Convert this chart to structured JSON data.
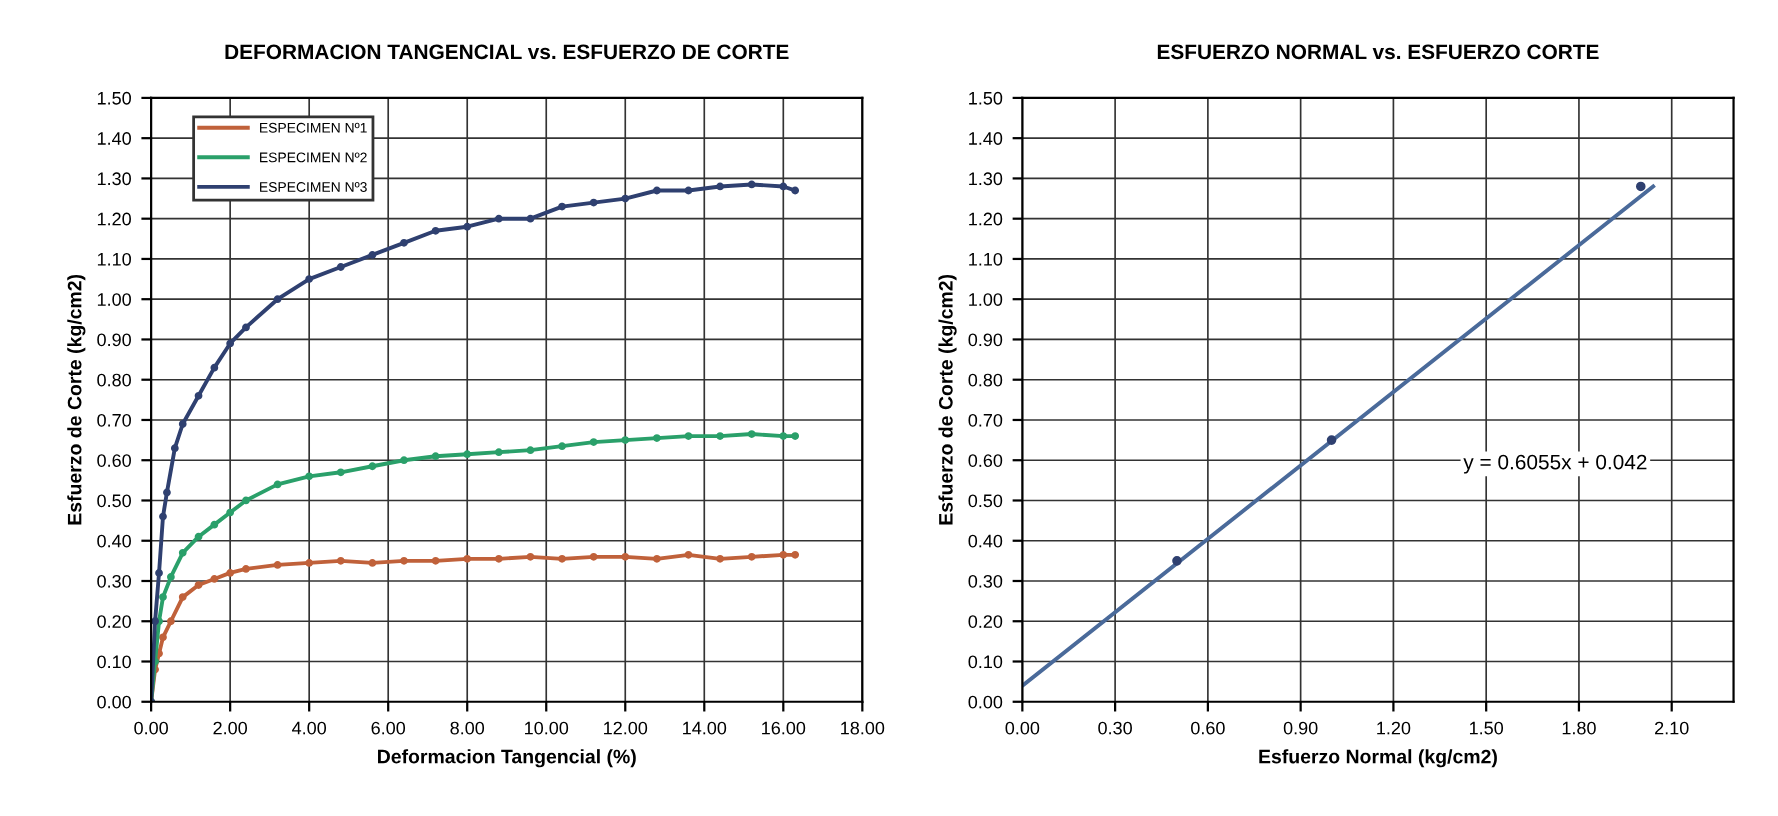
{
  "chart_data": [
    {
      "type": "line",
      "title": "DEFORMACION TANGENCIAL vs. ESFUERZO DE CORTE",
      "xlabel": "Deformacion Tangencial (%)",
      "ylabel": "Esfuerzo de Corte (kg/cm2)",
      "xlim": [
        0,
        18
      ],
      "xticks": [
        {
          "value": 0,
          "label": "0.00"
        },
        {
          "value": 2,
          "label": "2.00"
        },
        {
          "value": 4,
          "label": "4.00"
        },
        {
          "value": 6,
          "label": "6.00"
        },
        {
          "value": 8,
          "label": "8.00"
        },
        {
          "value": 10,
          "label": "10.00"
        },
        {
          "value": 12,
          "label": "12.00"
        },
        {
          "value": 14,
          "label": "14.00"
        },
        {
          "value": 16,
          "label": "16.00"
        },
        {
          "value": 18,
          "label": "18.00"
        }
      ],
      "ylim": [
        0,
        1.5
      ],
      "yticks": [
        {
          "value": 0,
          "label": "0.00"
        },
        {
          "value": 0.1,
          "label": "0.10"
        },
        {
          "value": 0.2,
          "label": "0.20"
        },
        {
          "value": 0.3,
          "label": "0.30"
        },
        {
          "value": 0.4,
          "label": "0.40"
        },
        {
          "value": 0.5,
          "label": "0.50"
        },
        {
          "value": 0.6,
          "label": "0.60"
        },
        {
          "value": 0.7,
          "label": "0.70"
        },
        {
          "value": 0.8,
          "label": "0.80"
        },
        {
          "value": 0.9,
          "label": "0.90"
        },
        {
          "value": 1.0,
          "label": "1.00"
        },
        {
          "value": 1.1,
          "label": "1.10"
        },
        {
          "value": 1.2,
          "label": "1.20"
        },
        {
          "value": 1.3,
          "label": "1.30"
        },
        {
          "value": 1.4,
          "label": "1.40"
        },
        {
          "value": 1.5,
          "label": "1.50"
        }
      ],
      "grid": true,
      "legend": "top left",
      "marker": "circle",
      "line_style": "solid",
      "series": [
        {
          "name": "ESPECIMEN Nº1",
          "color": "#c0613a",
          "x": [
            0,
            0.1,
            0.2,
            0.3,
            0.5,
            0.8,
            1.2,
            1.6,
            2.0,
            2.4,
            3.2,
            4.0,
            4.8,
            5.6,
            6.4,
            7.2,
            8.0,
            8.8,
            9.6,
            10.4,
            11.2,
            12.0,
            12.8,
            13.6,
            14.4,
            15.2,
            16.0,
            16.3
          ],
          "values": [
            0,
            0.08,
            0.12,
            0.16,
            0.2,
            0.26,
            0.29,
            0.305,
            0.32,
            0.33,
            0.34,
            0.345,
            0.35,
            0.345,
            0.35,
            0.35,
            0.355,
            0.355,
            0.36,
            0.355,
            0.36,
            0.36,
            0.355,
            0.365,
            0.355,
            0.36,
            0.365,
            0.365
          ]
        },
        {
          "name": "ESPECIMEN Nº2",
          "color": "#2aa06a",
          "x": [
            0,
            0.1,
            0.2,
            0.3,
            0.5,
            0.8,
            1.2,
            1.6,
            2.0,
            2.4,
            3.2,
            4.0,
            4.8,
            5.6,
            6.4,
            7.2,
            8.0,
            8.8,
            9.6,
            10.4,
            11.2,
            12.0,
            12.8,
            13.6,
            14.4,
            15.2,
            16.0,
            16.3
          ],
          "values": [
            0,
            0.1,
            0.2,
            0.26,
            0.31,
            0.37,
            0.41,
            0.44,
            0.47,
            0.5,
            0.54,
            0.56,
            0.57,
            0.585,
            0.6,
            0.61,
            0.615,
            0.62,
            0.625,
            0.635,
            0.645,
            0.65,
            0.655,
            0.66,
            0.66,
            0.665,
            0.66,
            0.66
          ]
        },
        {
          "name": "ESPECIMEN Nº3",
          "color": "#2f4070",
          "x": [
            0,
            0.1,
            0.2,
            0.3,
            0.4,
            0.6,
            0.8,
            1.2,
            1.6,
            2.0,
            2.4,
            3.2,
            4.0,
            4.8,
            5.6,
            6.4,
            7.2,
            8.0,
            8.8,
            9.6,
            10.4,
            11.2,
            12.0,
            12.8,
            13.6,
            14.4,
            15.2,
            16.0,
            16.3
          ],
          "values": [
            0,
            0.2,
            0.32,
            0.46,
            0.52,
            0.63,
            0.69,
            0.76,
            0.83,
            0.89,
            0.93,
            1.0,
            1.05,
            1.08,
            1.11,
            1.14,
            1.17,
            1.18,
            1.2,
            1.2,
            1.23,
            1.24,
            1.25,
            1.27,
            1.27,
            1.28,
            1.285,
            1.28,
            1.27
          ]
        }
      ]
    },
    {
      "type": "line",
      "title": "ESFUERZO NORMAL vs. ESFUERZO CORTE",
      "xlabel": "Esfuerzo Normal (kg/cm2)",
      "ylabel": "Esfuerzo de Corte (kg/cm2)",
      "xlim": [
        0,
        2.3
      ],
      "xticks": [
        {
          "value": 0,
          "label": "0.00"
        },
        {
          "value": 0.3,
          "label": "0.30"
        },
        {
          "value": 0.6,
          "label": "0.60"
        },
        {
          "value": 0.9,
          "label": "0.90"
        },
        {
          "value": 1.2,
          "label": "1.20"
        },
        {
          "value": 1.5,
          "label": "1.50"
        },
        {
          "value": 1.8,
          "label": "1.80"
        },
        {
          "value": 2.1,
          "label": "2.10"
        }
      ],
      "ylim": [
        0,
        1.5
      ],
      "yticks": [
        {
          "value": 0,
          "label": "0.00"
        },
        {
          "value": 0.1,
          "label": "0.10"
        },
        {
          "value": 0.2,
          "label": "0.20"
        },
        {
          "value": 0.3,
          "label": "0.30"
        },
        {
          "value": 0.4,
          "label": "0.40"
        },
        {
          "value": 0.5,
          "label": "0.50"
        },
        {
          "value": 0.6,
          "label": "0.60"
        },
        {
          "value": 0.7,
          "label": "0.70"
        },
        {
          "value": 0.8,
          "label": "0.80"
        },
        {
          "value": 0.9,
          "label": "0.90"
        },
        {
          "value": 1.0,
          "label": "1.00"
        },
        {
          "value": 1.1,
          "label": "1.10"
        },
        {
          "value": 1.2,
          "label": "1.20"
        },
        {
          "value": 1.3,
          "label": "1.30"
        },
        {
          "value": 1.4,
          "label": "1.40"
        },
        {
          "value": 1.5,
          "label": "1.50"
        }
      ],
      "grid": true,
      "line_style": "solid",
      "annotations": [
        "y = 0.6055x + 0.042"
      ],
      "series": [
        {
          "type": "scatter",
          "color": "#2f4070",
          "x": [
            0.5,
            1.0,
            2.0
          ],
          "values": [
            0.35,
            0.65,
            1.28
          ]
        },
        {
          "type": "line",
          "color": "#4a6a9a",
          "x": [
            0,
            2.04
          ],
          "values": [
            0.04,
            1.28
          ]
        }
      ]
    }
  ]
}
